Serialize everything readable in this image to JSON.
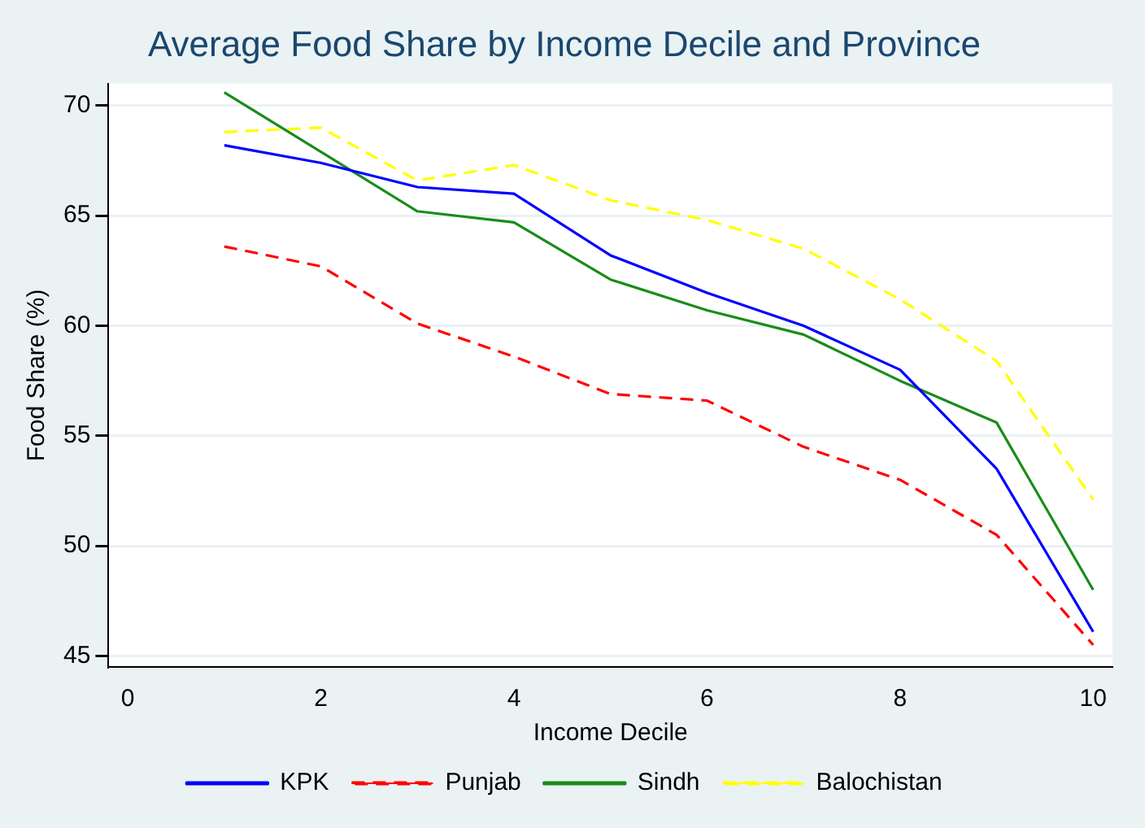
{
  "chart_data": {
    "type": "line",
    "title": "Average Food Share by Income Decile and Province",
    "xlabel": "Income Decile",
    "ylabel": "Food Share (%)",
    "x": [
      1,
      2,
      3,
      4,
      5,
      6,
      7,
      8,
      9,
      10
    ],
    "series": [
      {
        "name": "KPK",
        "color": "#0000ff",
        "line_style": "solid",
        "values": [
          68.2,
          67.4,
          66.3,
          66.0,
          63.2,
          61.5,
          60.0,
          58.0,
          53.5,
          46.1
        ]
      },
      {
        "name": "Punjab",
        "color": "#ff0000",
        "line_style": "dashed",
        "values": [
          63.6,
          62.7,
          60.1,
          58.6,
          56.9,
          56.6,
          54.5,
          53.0,
          50.5,
          45.5
        ]
      },
      {
        "name": "Sindh",
        "color": "#1a8c1a",
        "line_style": "solid",
        "values": [
          70.6,
          67.9,
          65.2,
          64.7,
          62.1,
          60.7,
          59.6,
          57.5,
          55.6,
          48.0
        ]
      },
      {
        "name": "Balochistan",
        "color": "#ffff00",
        "line_style": "dashed",
        "values": [
          68.8,
          69.0,
          66.6,
          67.3,
          65.7,
          64.8,
          63.5,
          61.2,
          58.4,
          52.1
        ]
      }
    ],
    "xlim": [
      -0.2,
      10.2
    ],
    "xticks": [
      0,
      2,
      4,
      6,
      8,
      10
    ],
    "ylim": [
      44.5,
      71
    ],
    "yticks": [
      45,
      50,
      55,
      60,
      65,
      70
    ],
    "grid": "y",
    "legend": "bottom",
    "marker": "none"
  }
}
